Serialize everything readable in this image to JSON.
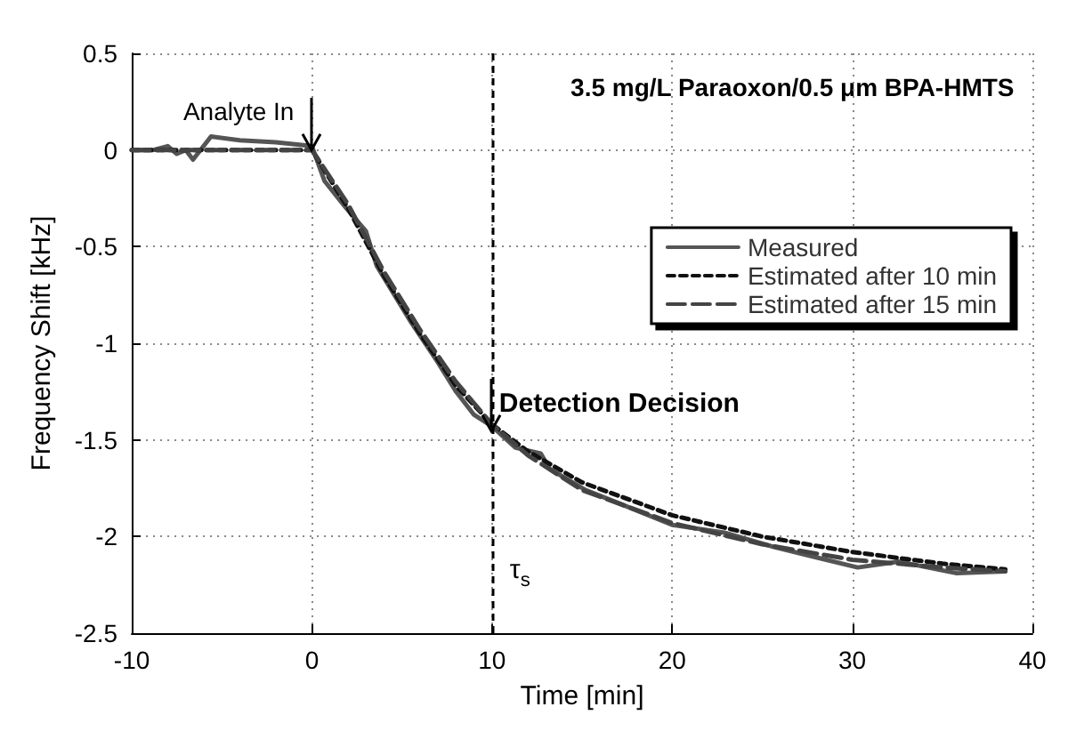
{
  "chart_data": {
    "type": "line",
    "xlabel": "Time [min]",
    "ylabel": "Frequency Shift [kHz]",
    "xlim": [
      -10,
      40
    ],
    "ylim": [
      -2.5,
      0.5
    ],
    "xticks": [
      -10,
      0,
      10,
      20,
      30,
      40
    ],
    "yticks": [
      -2.5,
      -2,
      -1.5,
      -1,
      -0.5,
      0,
      0.5
    ],
    "grid": true,
    "legend": "top right",
    "marker": "none",
    "series": [
      {
        "name": "Measured",
        "color": "#555555",
        "line_style": "solid",
        "x": [
          -10,
          -8.8,
          -8,
          -7.5,
          -7,
          -6.6,
          -5.6,
          -4,
          -2,
          0,
          0.7,
          1.9,
          3,
          3.6,
          5.5,
          7,
          8,
          9,
          10,
          11.3,
          12.7,
          13.2,
          15.2,
          17.1,
          20,
          22.9,
          25.5,
          28.1,
          30.3,
          32.6,
          35.8,
          38.5
        ],
        "values": [
          0,
          0,
          0.02,
          -0.02,
          0,
          -0.05,
          0.07,
          0.05,
          0.04,
          0.02,
          -0.16,
          -0.3,
          -0.42,
          -0.6,
          -0.89,
          -1.1,
          -1.25,
          -1.37,
          -1.43,
          -1.54,
          -1.57,
          -1.65,
          -1.76,
          -1.83,
          -1.94,
          -1.98,
          -2.05,
          -2.11,
          -2.16,
          -2.13,
          -2.19,
          -2.18
        ]
      },
      {
        "name": "Estimated after 10 min",
        "color": "#111111",
        "line_style": "dotted",
        "x": [
          -10,
          0,
          2,
          4,
          6,
          8,
          10,
          12,
          15,
          20,
          25,
          30,
          35,
          38.5
        ],
        "values": [
          0,
          0,
          -0.3,
          -0.65,
          -0.95,
          -1.22,
          -1.42,
          -1.56,
          -1.72,
          -1.89,
          -2.0,
          -2.08,
          -2.14,
          -2.17
        ]
      },
      {
        "name": "Estimated after 15 min",
        "color": "#444444",
        "line_style": "dashed",
        "x": [
          -10,
          0,
          2,
          4,
          6,
          8,
          10,
          12,
          15,
          20,
          25,
          30,
          35,
          38.5
        ],
        "values": [
          0,
          0,
          -0.28,
          -0.63,
          -0.93,
          -1.2,
          -1.42,
          -1.58,
          -1.76,
          -1.93,
          -2.04,
          -2.12,
          -2.16,
          -2.18
        ]
      }
    ],
    "ref_lines": [
      {
        "axis": "x",
        "value": 10,
        "label": "τ$_{s}$",
        "color": "#000000",
        "line_style": "dotted"
      }
    ],
    "annotations": [
      {
        "text": "Analyte In",
        "x": 0,
        "y": 0
      },
      {
        "text": "Detection Decision",
        "x": 10,
        "y": -1.45
      },
      "3.5 mg/L Paraoxon/0.5 μm BPA-HMTS"
    ]
  }
}
